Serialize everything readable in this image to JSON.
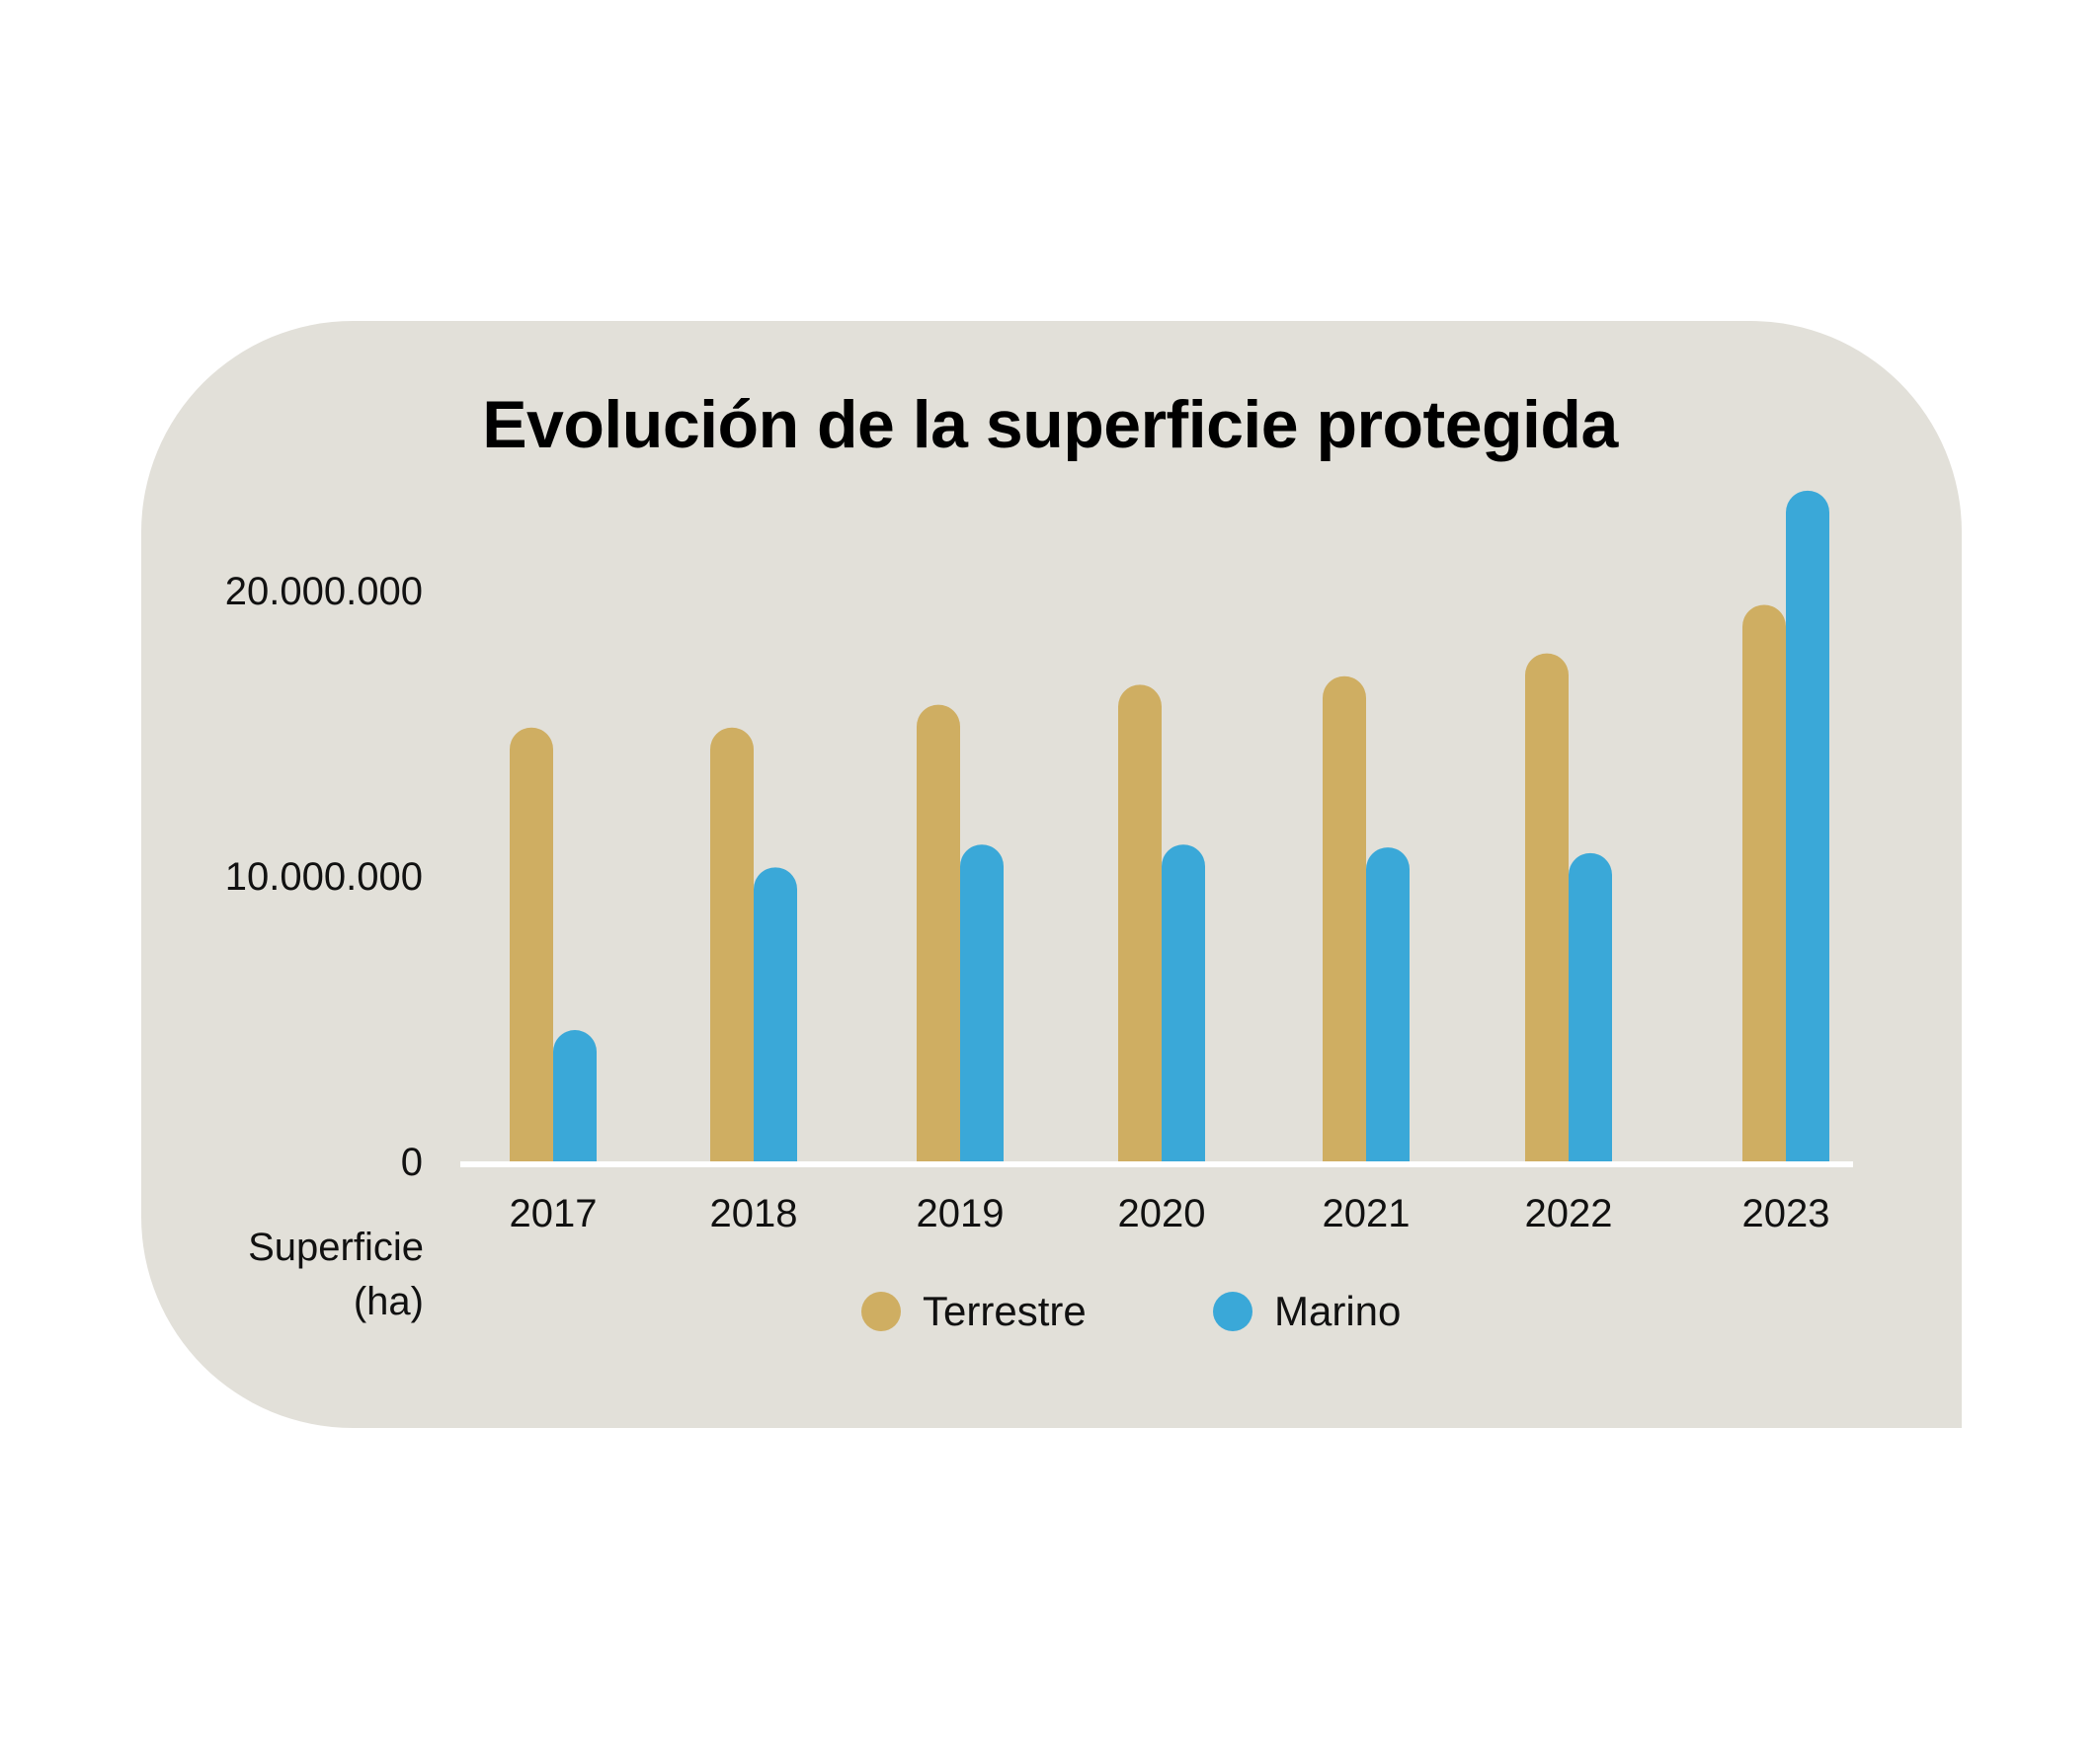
{
  "colors": {
    "background": "#e2e0d9",
    "terrestre": "#cfae62",
    "marino": "#3aa8d8",
    "axis": "#ffffff"
  },
  "chart_data": {
    "type": "bar",
    "title": "Evolución de la superficie protegida",
    "ylabel": "Superficie (ha)",
    "ylabel_lines": [
      "Superficie",
      "(ha)"
    ],
    "xlabel": "",
    "ylim": [
      0,
      20000000
    ],
    "yticks": [
      {
        "value": 0,
        "label": "0"
      },
      {
        "value": 10000000,
        "label": "10.000.000"
      },
      {
        "value": 20000000,
        "label": "20.000.000"
      }
    ],
    "categories": [
      "2017",
      "2018",
      "2019",
      "2020",
      "2021",
      "2022",
      "2023"
    ],
    "series": [
      {
        "name": "Terrestre",
        "color": "#cfae62",
        "values": [
          15200000,
          15200000,
          16000000,
          16700000,
          17000000,
          17800000,
          19500000
        ]
      },
      {
        "name": "Marino",
        "color": "#3aa8d8",
        "values": [
          4600000,
          10300000,
          11100000,
          11100000,
          11000000,
          10800000,
          23500000
        ]
      }
    ],
    "grid": false,
    "legend_position": "bottom"
  }
}
